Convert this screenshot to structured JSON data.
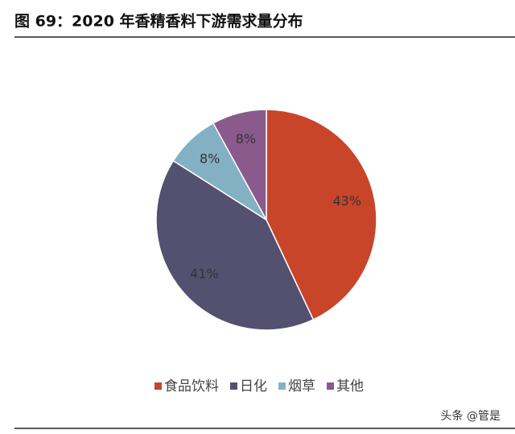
{
  "chart_data": {
    "type": "pie",
    "title": "图 69：2020 年香精香料下游需求量分布",
    "categories": [
      "食品饮料",
      "日化",
      "烟草",
      "其他"
    ],
    "values": [
      43,
      41,
      8,
      8
    ],
    "value_labels": [
      "43%",
      "41%",
      "8%",
      "8%"
    ],
    "colors": [
      "#c8452a",
      "#545070",
      "#84b0c4",
      "#8a5a8c"
    ],
    "legend": "bottom",
    "watermark": "头条 @管是"
  }
}
